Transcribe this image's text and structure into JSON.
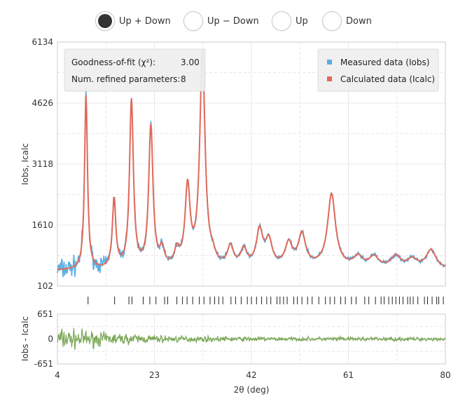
{
  "controls": {
    "modes": [
      {
        "label": "Up + Down",
        "selected": true
      },
      {
        "label": "Up − Down",
        "selected": false
      },
      {
        "label": "Up",
        "selected": false
      },
      {
        "label": "Down",
        "selected": false
      }
    ]
  },
  "colors": {
    "measured": "#5aaee0",
    "calculated": "#e06a5a",
    "difference": "#96bf6f",
    "grid": "#e8e8e8"
  },
  "stats": {
    "gof_label": "Goodness-of-fit (χ²):",
    "gof_value": "3.00",
    "params_label": "Num. refined parameters:",
    "params_value": "8"
  },
  "chart_data": [
    {
      "type": "line",
      "xlabel": "",
      "ylabel": "Iobs, Icalc",
      "xlim": [
        4,
        80
      ],
      "ylim": [
        102,
        6134
      ],
      "yticks": [
        102,
        1610,
        3118,
        4626,
        6134
      ],
      "legend": {
        "placement": "top-right",
        "entries": [
          "Measured data (Iobs)",
          "Calculated data (Icalc)"
        ]
      },
      "grid": true,
      "background_level": 480,
      "peaks": [
        {
          "x": 9.6,
          "height": 4300
        },
        {
          "x": 15.1,
          "height": 1700
        },
        {
          "x": 18.5,
          "height": 4150
        },
        {
          "x": 22.3,
          "height": 3500
        },
        {
          "x": 24.5,
          "height": 420
        },
        {
          "x": 27.4,
          "height": 380
        },
        {
          "x": 29.5,
          "height": 1950
        },
        {
          "x": 32.4,
          "height": 5300
        },
        {
          "x": 34.4,
          "height": 200
        },
        {
          "x": 37.9,
          "height": 500
        },
        {
          "x": 40.5,
          "height": 420
        },
        {
          "x": 43.6,
          "height": 880
        },
        {
          "x": 45.4,
          "height": 620
        },
        {
          "x": 49.3,
          "height": 550
        },
        {
          "x": 51.9,
          "height": 780
        },
        {
          "x": 57.7,
          "height": 1780
        },
        {
          "x": 62.9,
          "height": 240
        },
        {
          "x": 66.0,
          "height": 250
        },
        {
          "x": 70.3,
          "height": 280
        },
        {
          "x": 73.5,
          "height": 210
        },
        {
          "x": 77.2,
          "height": 460
        }
      ],
      "reflection_ticks": [
        10.0,
        15.2,
        18.0,
        18.6,
        20.8,
        22.1,
        23.3,
        25.0,
        25.6,
        27.4,
        28.5,
        29.4,
        30.5,
        31.8,
        32.7,
        33.9,
        34.8,
        35.6,
        36.4,
        38.0,
        38.9,
        40.0,
        41.2,
        42.0,
        43.0,
        44.0,
        45.0,
        45.8,
        47.0,
        47.6,
        48.3,
        49.0,
        50.3,
        51.0,
        51.9,
        53.0,
        53.9,
        55.2,
        56.5,
        57.4,
        58.3,
        59.5,
        60.4,
        61.6,
        62.5,
        64.2,
        65.0,
        66.3,
        67.4,
        68.0,
        68.9,
        69.6,
        70.3,
        71.0,
        71.7,
        72.6,
        73.1,
        73.7,
        74.6,
        75.9,
        76.5,
        77.4,
        78.3,
        78.7,
        79.6
      ]
    },
    {
      "type": "line",
      "xlabel": "2θ (deg)",
      "ylabel": "Iobs - Icalc",
      "xlim": [
        4,
        80
      ],
      "ylim": [
        -651,
        651
      ],
      "xticks": [
        4,
        23,
        42,
        61,
        80
      ],
      "yticks": [
        -651,
        0,
        651
      ],
      "grid": true
    }
  ]
}
